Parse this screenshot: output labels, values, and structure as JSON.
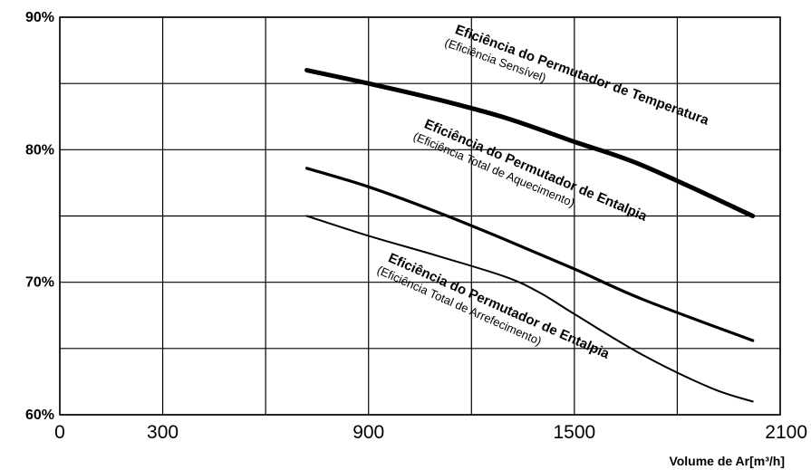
{
  "chart_data": {
    "type": "line",
    "title": "",
    "xlabel": "Volume de Ar[m³/h]",
    "ylabel": "",
    "xlim": [
      0,
      2100
    ],
    "ylim": [
      60,
      90
    ],
    "x_ticks": [
      0,
      300,
      900,
      1500,
      2100
    ],
    "x_tick_labels": [
      "0",
      "300",
      "900",
      "1500",
      "2100"
    ],
    "y_ticks": [
      60,
      70,
      80,
      90
    ],
    "y_tick_labels": [
      "60%",
      "70%",
      "80%",
      "90%"
    ],
    "grid": true,
    "grid_x": [
      0,
      300,
      600,
      900,
      1200,
      1500,
      1800,
      2100
    ],
    "grid_y": [
      60,
      65,
      70,
      75,
      80,
      85,
      90
    ],
    "series": [
      {
        "name": "Eficiência do Permutador de Temperatura",
        "subtitle": "(Eficiência Sensível)",
        "stroke_width": 5,
        "x": [
          720,
          900,
          1100,
          1300,
          1500,
          1700,
          2020
        ],
        "y": [
          86,
          85,
          83.8,
          82.4,
          80.6,
          78.8,
          75
        ]
      },
      {
        "name": "Eficiência do Permutador de Entalpia",
        "subtitle": "(Eficiência Total de Aquecimento)",
        "stroke_width": 3.2,
        "x": [
          720,
          900,
          1100,
          1300,
          1500,
          1700,
          2020
        ],
        "y": [
          78.6,
          77.2,
          75.3,
          73.2,
          71,
          68.7,
          65.6
        ]
      },
      {
        "name": "Eficiência do Permutador de Entalpia",
        "subtitle": "(Eficiência Total de Arrefecimento)",
        "stroke_width": 2,
        "x": [
          720,
          900,
          1100,
          1300,
          1400,
          1500,
          1700,
          1900,
          2020
        ],
        "y": [
          75,
          73.5,
          72,
          70.4,
          69.2,
          67.6,
          64.5,
          62,
          61
        ]
      }
    ],
    "annotations": [
      {
        "main": "Eficiência do Permutador de Temperatura",
        "sub": "(Eficiência Sensível)",
        "x": 1150,
        "y": 88.8,
        "angle": 20
      },
      {
        "main": "Eficiência do Permutador de Entalpia",
        "sub": "(Eficiência Total de Aquecimento)",
        "x": 1060,
        "y": 81.7,
        "angle": 23
      },
      {
        "main": "Eficiência do Permutador de Entalpia",
        "sub": "(Eficiência Total de Arrefecimento)",
        "x": 955,
        "y": 71.6,
        "angle": 24
      }
    ]
  }
}
